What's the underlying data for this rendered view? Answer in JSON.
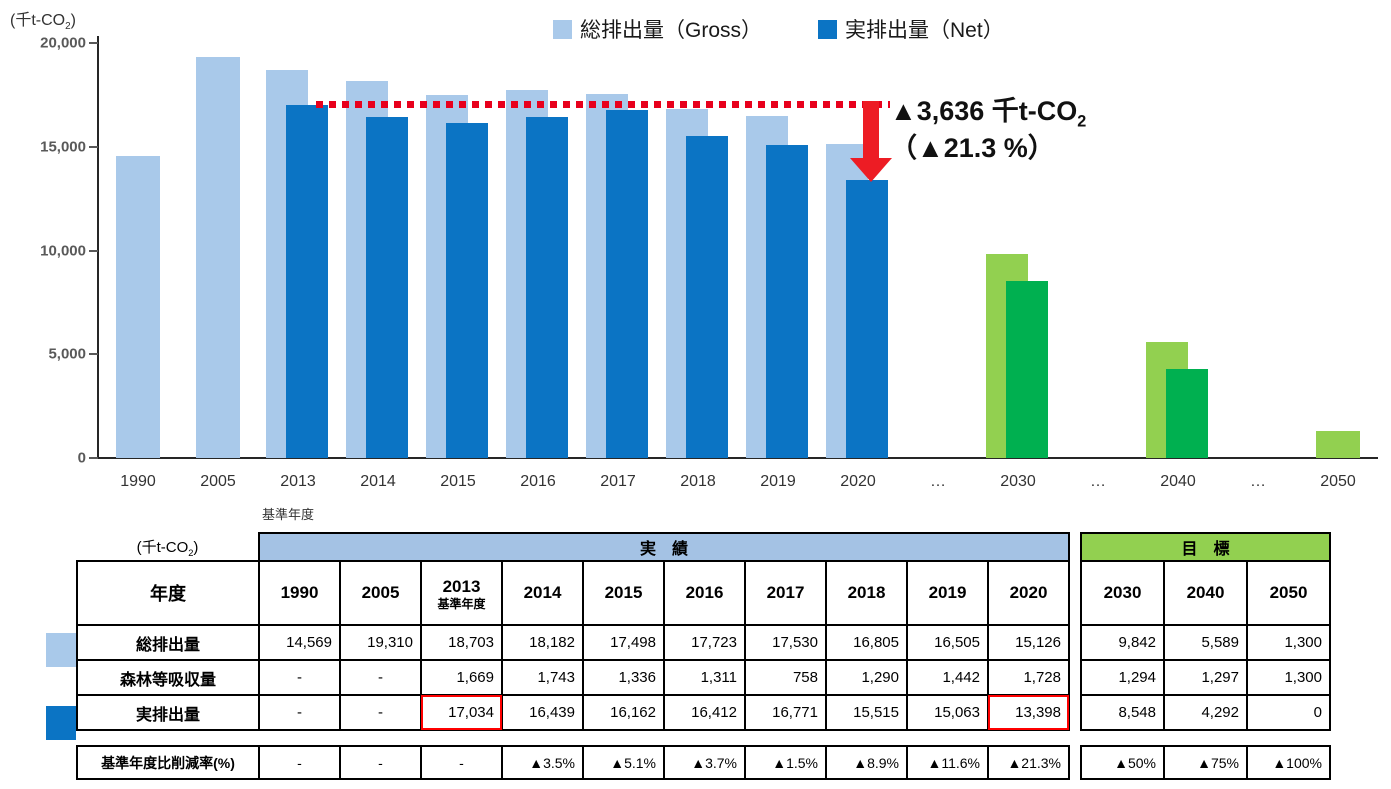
{
  "chart_data": {
    "type": "bar",
    "title": "",
    "xlabel": "",
    "ylabel": "千t-CO2",
    "unit": {
      "main": "(千t-CO",
      "sub": "2",
      "end": ")"
    },
    "categories": [
      "1990",
      "2005",
      "2013",
      "2014",
      "2015",
      "2016",
      "2017",
      "2018",
      "2019",
      "2020",
      "…",
      "2030",
      "…",
      "2040",
      "…",
      "2050"
    ],
    "series": [
      {
        "name": "総排出量（Gross）",
        "values": [
          14569,
          19310,
          18703,
          18182,
          17498,
          17723,
          17530,
          16805,
          16505,
          15126,
          null,
          9842,
          null,
          5589,
          null,
          1300
        ]
      },
      {
        "name": "実排出量（Net）",
        "values": [
          null,
          null,
          17034,
          16439,
          16162,
          16412,
          16771,
          15515,
          15063,
          13398,
          null,
          8548,
          null,
          4292,
          null,
          0
        ]
      }
    ],
    "ylim": [
      0,
      20000
    ],
    "yticks": [
      {
        "label": "0",
        "value": 0
      },
      {
        "label": "5,000",
        "value": 5000
      },
      {
        "label": "10,000",
        "value": 10000
      },
      {
        "label": "15,000",
        "value": 15000
      },
      {
        "label": "20,000",
        "value": 20000
      }
    ],
    "grid": false,
    "legend_position": "top",
    "base_year_label": "基準年度",
    "base_year_index": 2,
    "annotation": {
      "line1_main": "▲3,636 千t-CO",
      "line1_sub": "2",
      "line2": "（▲21.3 %）",
      "from_level": 17034,
      "to_level": 13398
    },
    "colors": {
      "gross_past": "#A9C9EA",
      "net_past": "#0B74C4",
      "gross_future": "#92D050",
      "net_future": "#00B050",
      "reference_red": "#E8001C"
    }
  },
  "table": {
    "unit": {
      "main": "(千t-CO",
      "sub": "2",
      "end": ")"
    },
    "actual_header": "実　績",
    "target_header": "目　標",
    "actual_band_color": "#A4C2E4",
    "target_band_color": "#92D050",
    "year_row_label": "年度",
    "years_actual": [
      "1990",
      "2005",
      "2013",
      "2014",
      "2015",
      "2016",
      "2017",
      "2018",
      "2019",
      "2020"
    ],
    "base_year_note": "基準年度",
    "base_year_col": 2,
    "years_target": [
      "2030",
      "2040",
      "2050"
    ],
    "rows": [
      {
        "label": "総排出量",
        "marker": "gross",
        "actual": [
          "14,569",
          "19,310",
          "18,703",
          "18,182",
          "17,498",
          "17,723",
          "17,530",
          "16,805",
          "16,505",
          "15,126"
        ],
        "target": [
          "9,842",
          "5,589",
          "1,300"
        ],
        "highlight": []
      },
      {
        "label": "森林等吸収量",
        "marker": null,
        "actual": [
          "-",
          "-",
          "1,669",
          "1,743",
          "1,336",
          "1,311",
          "758",
          "1,290",
          "1,442",
          "1,728"
        ],
        "target": [
          "1,294",
          "1,297",
          "1,300"
        ],
        "highlight": []
      },
      {
        "label": "実排出量",
        "marker": "net",
        "actual": [
          "-",
          "-",
          "17,034",
          "16,439",
          "16,162",
          "16,412",
          "16,771",
          "15,515",
          "15,063",
          "13,398"
        ],
        "target": [
          "8,548",
          "4,292",
          "0"
        ],
        "highlight": [
          2,
          9
        ]
      }
    ],
    "reduction_row": {
      "label": "基準年度比削減率(%)",
      "actual": [
        "-",
        "-",
        "-",
        "▲3.5%",
        "▲5.1%",
        "▲3.7%",
        "▲1.5%",
        "▲8.9%",
        "▲11.6%",
        "▲21.3%"
      ],
      "target": [
        "▲50%",
        "▲75%",
        "▲100%"
      ]
    }
  }
}
